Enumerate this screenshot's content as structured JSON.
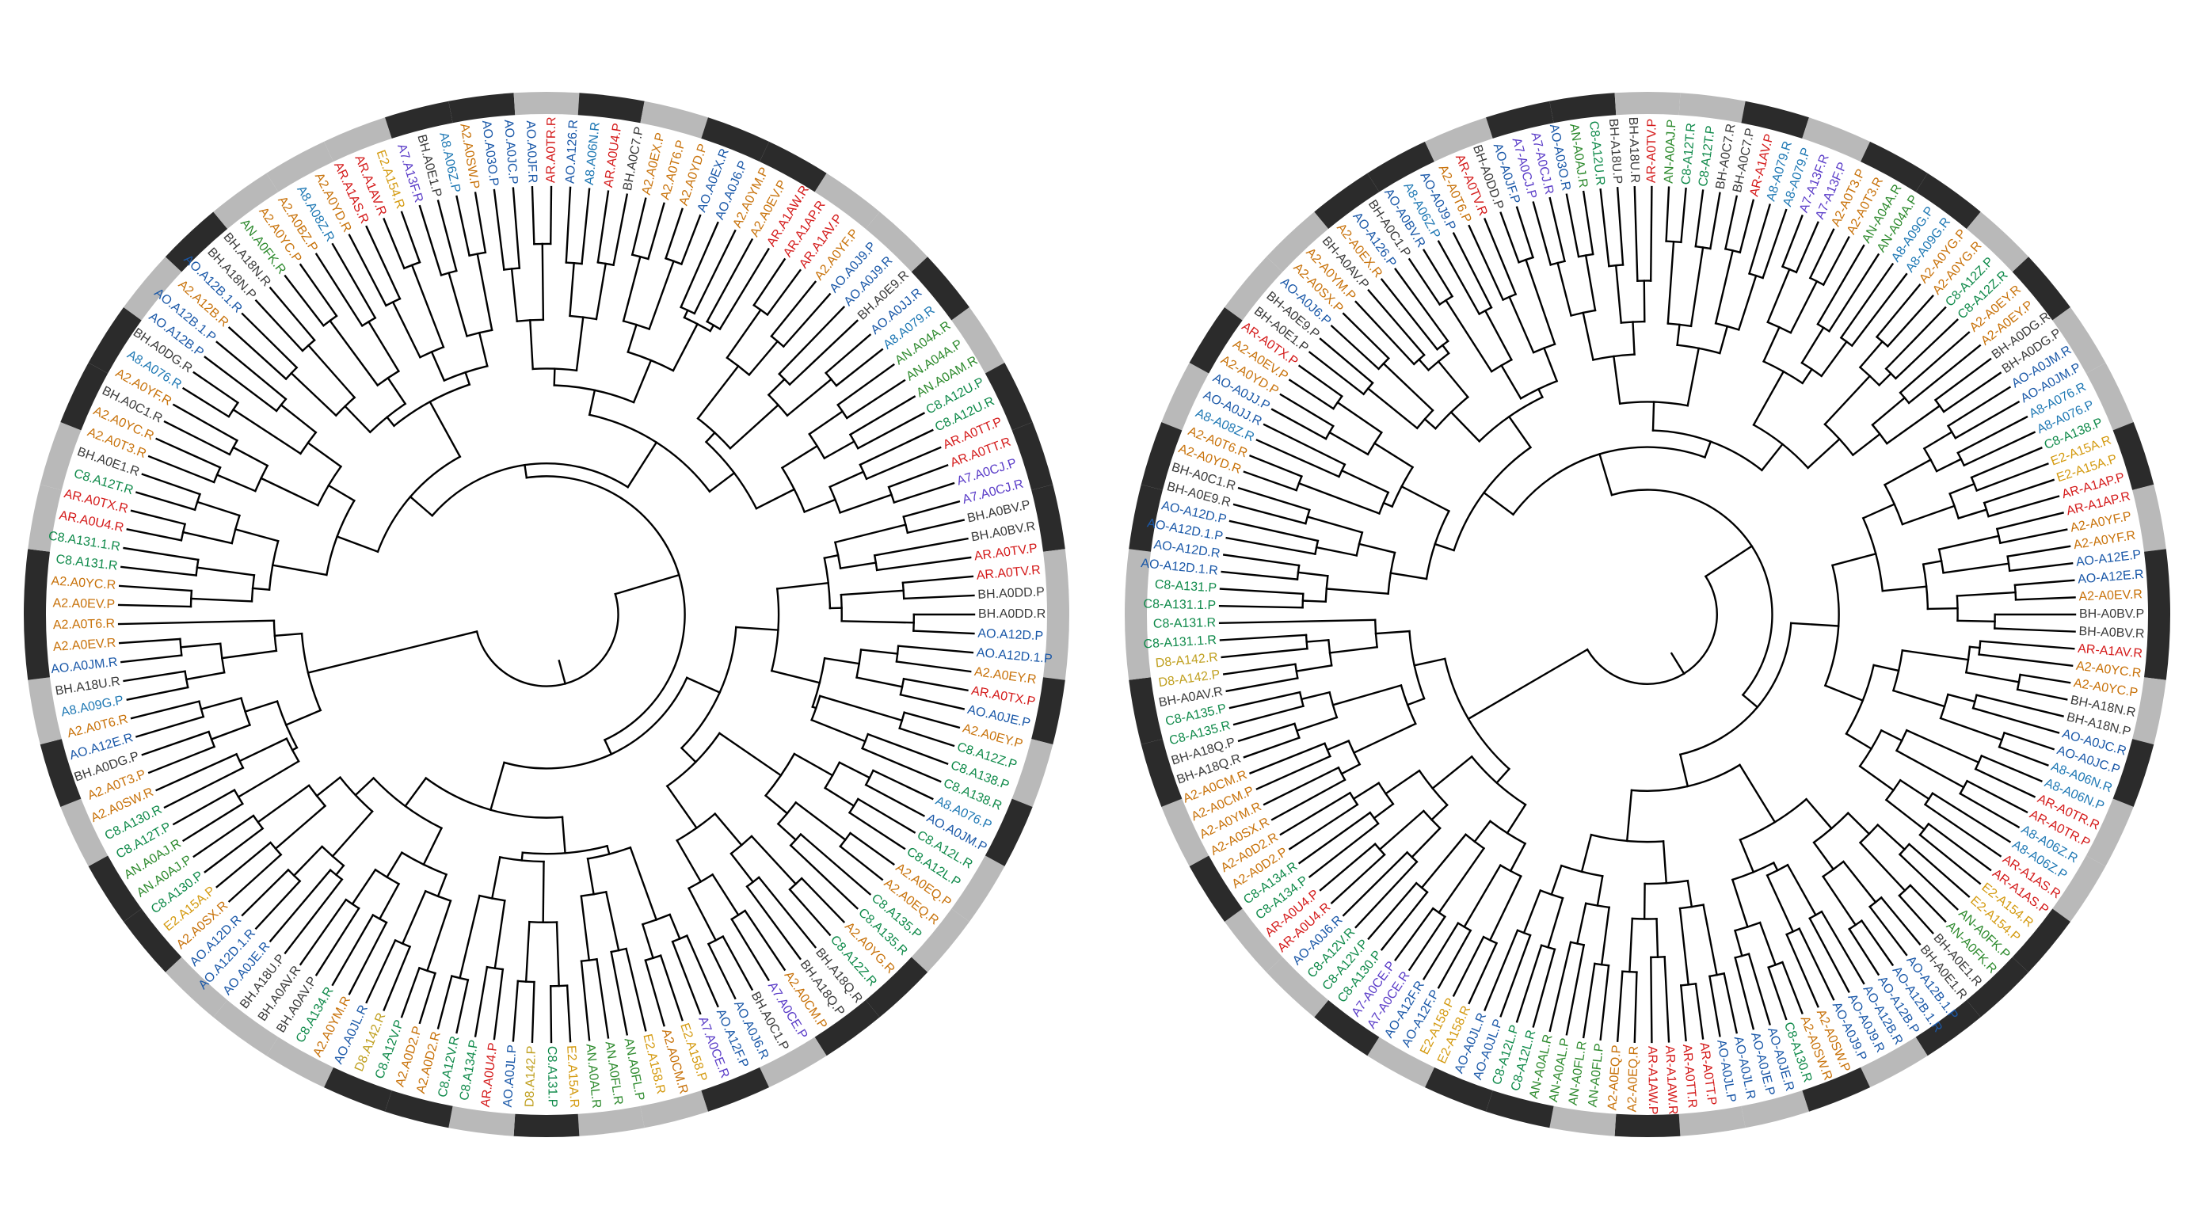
{
  "colors": {
    "ring_dark": "#2b2b2b",
    "ring_light": "#b9b9b9",
    "branch": "#000000",
    "tag": {
      "A2": "#c8720a",
      "AO": "#1a58a8",
      "AR": "#d41a1a",
      "BH": "#3a3a3a",
      "C8": "#0f8a4a",
      "E2": "#d49a10",
      "A8": "#1e78b4",
      "AN": "#2d8a2d",
      "A7": "#5a3cc8",
      "D8": "#c0a020"
    }
  },
  "trees": [
    {
      "id": "left",
      "ring_pattern": [
        1,
        0,
        0,
        1,
        1,
        0,
        1,
        0,
        0,
        0,
        1,
        1,
        0,
        1,
        0,
        1,
        1,
        0,
        0,
        1,
        0,
        1,
        1,
        1,
        0,
        0,
        1,
        0,
        1,
        0,
        0,
        1,
        1,
        0,
        1,
        0,
        0,
        1,
        0,
        1,
        1,
        0,
        0,
        0,
        1,
        1,
        0,
        1,
        0,
        1
      ],
      "labels": [
        "A2.A0EV.P",
        "A2.A0YC.R",
        "C8.A131.R",
        "C8.A131.1.R",
        "AR.A0U4.R",
        "AR.A0TX.R",
        "C8.A12T.R",
        "BH.A0E1.R",
        "A2.A0T3.R",
        "A2.A0YC.R",
        "BH.A0C1.R",
        "A2.A0YF.R",
        "A8.A076.R",
        "BH.A0DG.R",
        "AO.A12B.P",
        "AO.A12B.1.P",
        "A2.A12B.R",
        "AO.A12B.1.R",
        "BH.A18N.P",
        "BH.A18N.R",
        "AN.A0FK.R",
        "A2.A0YC.P",
        "A2.A0BZ.P",
        "A8.A08Z.R",
        "A2.A0YD.R",
        "AR.A1AS.R",
        "AR.A1AV.R",
        "E2.A154.R",
        "A7.A13F.R",
        "BH.A0E1.P",
        "A8.A06Z.P",
        "A2.A0SW.P",
        "AO.A03O.P",
        "AO.A0JC.P",
        "AO.A0JF.R",
        "AR.A0TR.R",
        "AO.A126.R",
        "A8.A06N.R",
        "AR.A0U4.P",
        "BH.A0C7.P",
        "A2.A0EX.P",
        "A2.A0T6.P",
        "A2.A0YD.P",
        "AO.A0EX.R",
        "AO.A0J6.P",
        "A2.A0YM.P",
        "A2.A0EV.P",
        "AR.A1AW.R",
        "AR.A1AP.R",
        "AR.A1AV.P",
        "A2.A0YF.P",
        "AO.A0J9.P",
        "AO.A0J9.R",
        "BH.A0E9.R",
        "AO.A0JJ.R",
        "A8.A079.R",
        "AN.A04A.R",
        "AN.A04A.P",
        "AN.A0AM.R",
        "C8.A12U.P",
        "C8.A12U.R",
        "AR.A0TT.P",
        "AR.A0TT.R",
        "A7.A0CJ.P",
        "A7.A0CJ.R",
        "BH.A0BV.P",
        "BH.A0BV.R",
        "AR.A0TV.P",
        "AR.A0TV.R",
        "BH.A0DD.P",
        "BH.A0DD.R",
        "AO.A12D.P",
        "AO.A12D.1.P",
        "A2.A0EY.R",
        "AR.A0TX.P",
        "AO.A0JE.P",
        "A2.A0EY.P",
        "C8.A12Z.P",
        "C8.A138.P",
        "C8.A138.R",
        "A8.A076.P",
        "AO.A0JM.P",
        "C8.A12L.R",
        "C8.A12L.P",
        "A2.A0EQ.P",
        "A2.A0EQ.R",
        "C8.A135.P",
        "C8.A135.R",
        "A2.A0YG.R",
        "C8.A12Z.R",
        "BH.A18Q.R",
        "BH.A18Q.P",
        "A2.A0CM.P",
        "A7.A0CE.P",
        "BH.A0C1.P",
        "AO.A0J6.R",
        "AO.A12F.P",
        "A7.A0CE.R",
        "E2.A158.P",
        "A2.A0CM.R",
        "E2.A158.R",
        "AN.A0FL.P",
        "AN.A0FL.R",
        "AN.A0AL.R",
        "E2.A15A.R",
        "C8.A131.P",
        "D8.A142.P",
        "AO.A0JL.P",
        "AR.A0U4.P",
        "C8.A134.P",
        "C8.A12V.R",
        "A2.A0D2.R",
        "A2.A0D2.P",
        "C8.A12V.P",
        "D8.A142.R",
        "AO.A0JL.R",
        "A2.A0YM.R",
        "C8.A134.R",
        "BH.A0AV.P",
        "BH.A0AV.R",
        "BH.A18U.P",
        "AO.A0JE.R",
        "AO.A12D.1.R",
        "AO.A12D.R",
        "A2.A0SX.R",
        "E2.A15A.P",
        "C8.A130.P",
        "AN.A0AJ.P",
        "AN.A0AJ.R",
        "C8.A12T.P",
        "C8.A130.R",
        "A2.A0SW.R",
        "A2.A0T3.P",
        "BH.A0DG.P",
        "AO.A12E.R",
        "A2.A0T6.R",
        "A8.A09G.P",
        "BH.A18U.R",
        "AO.A0JM.R",
        "A2.A0EV.R",
        "A2.A0T6.R"
      ]
    },
    {
      "id": "right",
      "ring_pattern": [
        0,
        1,
        1,
        0,
        1,
        0,
        0,
        1,
        1,
        0,
        1,
        1,
        0,
        0,
        1,
        0,
        1,
        1,
        0,
        1,
        0,
        0,
        1,
        0,
        1,
        1,
        0,
        1,
        0,
        0,
        1,
        1,
        1,
        0,
        1,
        0,
        0,
        1,
        0,
        1,
        1,
        0,
        1,
        0,
        0,
        1,
        0,
        1,
        1,
        0
      ],
      "labels": [
        "C8-A131.1.P",
        "C8-A131.P",
        "AO-A12D.1.R",
        "AO-A12D.R",
        "AO-A12D.1.P",
        "AO-A12D.P",
        "BH-A0E9.R",
        "BH-A0C1.R",
        "A2-A0YD.R",
        "A2-A0T6.R",
        "A8-A08Z.R",
        "AO-A0JJ.R",
        "AO-A0JJ.P",
        "A2-A0YD.P",
        "A2-A0EV.P",
        "AR-A0TX.P",
        "BH-A0E1.P",
        "BH-A0E9.P",
        "AO-A0J6.P",
        "A2-A0SX.P",
        "A2-A0YM.P",
        "BH-A0AV.P",
        "A2-A0EX.R",
        "AO-A126.P",
        "BH-A0C1.P",
        "AO-A0BV.R",
        "A8-A06Z.P",
        "AO-A0J9.P",
        "A2-A0T6.P",
        "AR-A0TV.R",
        "BH-A0DD.P",
        "AO-A0JF.P",
        "A7-A0CJ.P",
        "A7-A0CJ.R",
        "AO-A03O.R",
        "AN-A0AJ.R",
        "C8-A12U.R",
        "BH-A18U.P",
        "BH-A18U.R",
        "AR-A0TV.P",
        "AN-A0AJ.P",
        "C8-A12T.R",
        "C8-A12T.P",
        "BH-A0C7.R",
        "BH-A0C7.P",
        "AR-A1AV.P",
        "A8-A079.R",
        "A8-A079.P",
        "A7-A13F.R",
        "A7-A13F.P",
        "A2-A0T3.P",
        "A2-A0T3.R",
        "AN-A04A.R",
        "AN-A04A.P",
        "A8-A09G.P",
        "A8-A09G.R",
        "A2-A0YG.P",
        "A2-A0YG.R",
        "C8-A12Z.P",
        "C8-A12Z.R",
        "A2-A0EY.R",
        "A2-A0EY.P",
        "BH-A0DG.R",
        "BH-A0DG.P",
        "AO-A0JM.R",
        "AO-A0JM.P",
        "A8-A076.R",
        "A8-A076.P",
        "C8-A138.P",
        "E2-A15A.R",
        "E2-A15A.P",
        "AR-A1AP.P",
        "AR-A1AP.R",
        "A2-A0YF.P",
        "A2-A0YF.R",
        "AO-A12E.P",
        "AO-A12E.R",
        "A2-A0EV.R",
        "BH-A0BV.P",
        "BH-A0BV.R",
        "AR-A1AV.R",
        "A2-A0YC.R",
        "A2-A0YC.P",
        "BH-A18N.R",
        "BH-A18N.P",
        "AO-A0JC.R",
        "AO-A0JC.P",
        "A8-A06N.R",
        "A8-A06N.P",
        "AR-A0TR.R",
        "AR-A0TR.P",
        "A8-A06Z.R",
        "A8-A06Z.P",
        "AR-A1AS.R",
        "AR-A1AS.P",
        "E2-A154.R",
        "E2-A154.P",
        "AN-A0FK.P",
        "AN-A0FK.R",
        "BH-A0E1.R",
        "BH-A0E1.R",
        "AO-A12B.1.P",
        "AO-A12B.1.R",
        "AO-A12B.P",
        "AO-A12B.R",
        "AO-A0J9.R",
        "AO-A0J9.P",
        "A2-A0SW.P",
        "A2-A0SW.R",
        "C8-A130.R",
        "AO-A0JE.R",
        "AO-A0JE.P",
        "AO-A0JL.R",
        "AO-A0JL.P",
        "AR-A0TT.P",
        "AR-A0TT.R",
        "AR-A1AW.R",
        "AR-A1AW.P",
        "A2-A0EQ.R",
        "A2-A0EQ.P",
        "AN-A0FL.P",
        "AN-A0FL.R",
        "AN-A0AL.P",
        "AN-A0AL.R",
        "C8-A12L.R",
        "C8-A12L.P",
        "AO-A0JL.P",
        "AO-A0JL.R",
        "E2-A158.R",
        "E2-A158.P",
        "AO-A12F.P",
        "AO-A12F.R",
        "A7-A0CE.R",
        "A7-A0CE.P",
        "C8-A130.P",
        "C8-A12V.P",
        "C8-A12V.R",
        "AO-A0J6.R",
        "AR-A0U4.R",
        "AR-A0U4.P",
        "C8-A134.P",
        "C8-A134.R",
        "A2-A0D2.P",
        "A2-A0D2.R",
        "A2-A0SX.R",
        "A2-A0YM.R",
        "A2-A0CM.P",
        "A2-A0CM.R",
        "BH-A18Q.R",
        "BH-A18Q.P",
        "C8-A135.R",
        "C8-A135.P",
        "BH-A0AV.R",
        "D8-A142.P",
        "D8-A142.R",
        "C8-A131.1.R",
        "C8-A131.R"
      ]
    }
  ]
}
